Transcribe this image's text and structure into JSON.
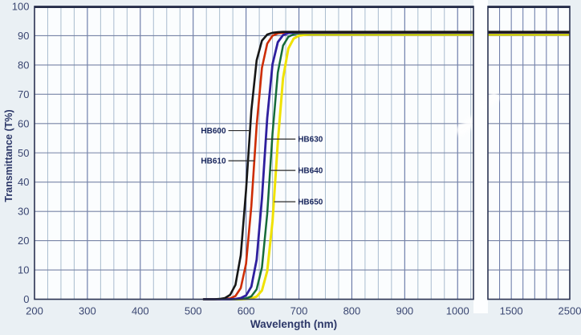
{
  "chart_data": {
    "type": "line",
    "title": "",
    "xlabel": "Wavelength (nm)",
    "ylabel": "Transmittance (T%)",
    "ylim": [
      0,
      100
    ],
    "y_ticks": [
      0,
      10,
      20,
      30,
      40,
      50,
      60,
      70,
      80,
      90,
      100
    ],
    "x_axis_break": true,
    "left_panel": {
      "range_nm": [
        200,
        1030
      ],
      "major_ticks": [
        200,
        300,
        400,
        500,
        600,
        700,
        800,
        900,
        1000
      ],
      "minor_step_nm": 25
    },
    "right_panel": {
      "range_nm": [
        1100,
        2500
      ],
      "major_ticks": [
        1500,
        2500
      ],
      "grid_lines_nm": [
        1300,
        1500,
        1700,
        1900,
        2100,
        2300
      ]
    },
    "grid": true,
    "plateau_transmittance_pct": 91,
    "series": [
      {
        "name": "HB650",
        "color": "#f0e202",
        "width": 3.0,
        "cut_on_nm": 657,
        "plateau": 90.4,
        "x": [
          520,
          590,
          600,
          610,
          620,
          630,
          640,
          650,
          660,
          670,
          680,
          690,
          700,
          710,
          720,
          800,
          900,
          1000,
          1030
        ],
        "y": [
          0,
          0,
          0.1,
          0.3,
          0.9,
          3.0,
          9.6,
          26.6,
          53.6,
          75.5,
          85.6,
          89.0,
          90.0,
          90.3,
          90.4,
          90.4,
          90.4,
          90.4,
          90.4
        ]
      },
      {
        "name": "HB640",
        "color": "#156b38",
        "width": 2.5,
        "cut_on_nm": 646,
        "plateau": 90.9,
        "x": [
          520,
          580,
          590,
          600,
          610,
          620,
          630,
          640,
          650,
          660,
          670,
          680,
          690,
          700,
          710,
          800,
          900,
          1000,
          1030
        ],
        "y": [
          0,
          0,
          0.1,
          0.3,
          1.0,
          3.4,
          10.8,
          29.2,
          56.6,
          77.4,
          86.6,
          89.6,
          90.5,
          90.8,
          90.9,
          90.9,
          90.9,
          90.9,
          90.9
        ]
      },
      {
        "name": "HB610",
        "color": "#cd2d04",
        "width": 2.6,
        "cut_on_nm": 615,
        "plateau": 91.1,
        "x": [
          520,
          550,
          560,
          570,
          580,
          590,
          600,
          610,
          620,
          630,
          640,
          650,
          660,
          670,
          680,
          700,
          800,
          900,
          1000,
          1030
        ],
        "y": [
          0,
          0,
          0.1,
          0.3,
          1.1,
          3.8,
          12.1,
          31.8,
          59.3,
          79.0,
          87.3,
          90.0,
          90.8,
          91.0,
          91.1,
          91.1,
          91.1,
          91.1,
          91.1,
          91.1
        ]
      },
      {
        "name": "HB630",
        "color": "#2e1f9e",
        "width": 2.8,
        "cut_on_nm": 634,
        "plateau": 91.2,
        "x": [
          520,
          570,
          580,
          590,
          600,
          610,
          620,
          630,
          640,
          650,
          660,
          670,
          680,
          690,
          700,
          800,
          900,
          1000,
          1030
        ],
        "y": [
          0,
          0,
          0.1,
          0.4,
          1.3,
          4.3,
          13.5,
          34.4,
          61.9,
          80.3,
          87.8,
          90.2,
          90.9,
          91.1,
          91.2,
          91.2,
          91.2,
          91.2,
          91.2
        ]
      },
      {
        "name": "HB600",
        "color": "#161616",
        "width": 2.6,
        "cut_on_nm": 603,
        "plateau": 91.3,
        "x": [
          520,
          540,
          550,
          560,
          570,
          580,
          590,
          600,
          610,
          620,
          630,
          640,
          650,
          660,
          670,
          700,
          800,
          900,
          1000,
          1030
        ],
        "y": [
          0,
          0,
          0.1,
          0.4,
          1.5,
          4.9,
          15.0,
          37.2,
          64.4,
          81.6,
          88.3,
          90.4,
          91.0,
          91.2,
          91.3,
          91.3,
          91.3,
          91.3,
          91.3,
          91.3
        ]
      }
    ],
    "annotations": [
      {
        "text": "HB600",
        "side": "left",
        "T": 57.6,
        "leader_nm": 607.5
      },
      {
        "text": "HB610",
        "side": "left",
        "T": 47.3,
        "leader_nm": 616.0
      },
      {
        "text": "HB630",
        "side": "right",
        "T": 54.7,
        "leader_nm": 637.5
      },
      {
        "text": "HB640",
        "side": "right",
        "T": 44.0,
        "leader_nm": 645.5
      },
      {
        "text": "HB650",
        "side": "right",
        "T": 33.3,
        "leader_nm": 653.0
      }
    ],
    "legend_position": "none"
  },
  "colors": {
    "page_background": "#eaf0f4",
    "plot_background": "#fbfdfe",
    "gap_background": "#fdfeff",
    "grid_minor": "#a9bccf",
    "grid_major": "#6374a4",
    "grid_horizontal": "#7884a6",
    "panel_border": "#2b3352",
    "top_border": "#242b47",
    "leader_line": "#2a2a2a",
    "tick_text": "#3b4772",
    "title_text": "#2c3768",
    "annotation_text": "#17255c"
  }
}
